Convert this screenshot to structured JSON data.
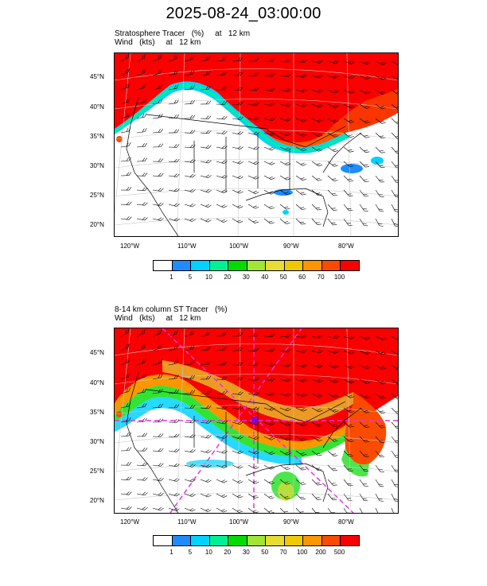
{
  "title": "2025-08-24_03:00:00",
  "panels": [
    {
      "line1": "Stratosphere Tracer   (%)     at   12 km",
      "line2": "Wind   (kts)     at   12 km",
      "lat_labels": [
        "45°N",
        "40°N",
        "35°N",
        "30°N",
        "25°N",
        "20°N"
      ],
      "lon_labels": [
        "120°W",
        "110°W",
        "100°W",
        "90°W",
        "80°W"
      ],
      "colorbar_labels": [
        "1",
        "5",
        "10",
        "20",
        "30",
        "40",
        "50",
        "60",
        "70",
        "100"
      ],
      "colors": [
        "#ffffff",
        "#1e8cff",
        "#00d2ff",
        "#00f096",
        "#00dc00",
        "#a0e632",
        "#e6dc32",
        "#f0c800",
        "#fa9600",
        "#fa4b00",
        "#fa0000"
      ]
    },
    {
      "line1": "8-14 km column ST Tracer   (%)",
      "line2": "Wind   (kts)     at   12 km",
      "lat_labels": [
        "45°N",
        "40°N",
        "35°N",
        "30°N",
        "25°N",
        "20°N"
      ],
      "lon_labels": [
        "120°W",
        "110°W",
        "100°W",
        "90°W",
        "80°W"
      ],
      "colorbar_labels": [
        "1",
        "5",
        "10",
        "20",
        "30",
        "50",
        "70",
        "100",
        "200",
        "500"
      ],
      "colors": [
        "#ffffff",
        "#1e8cff",
        "#00d2ff",
        "#00f096",
        "#00dc00",
        "#a0e632",
        "#e6dc32",
        "#f0c800",
        "#fa9600",
        "#fa4b00",
        "#fa0000"
      ]
    }
  ]
}
